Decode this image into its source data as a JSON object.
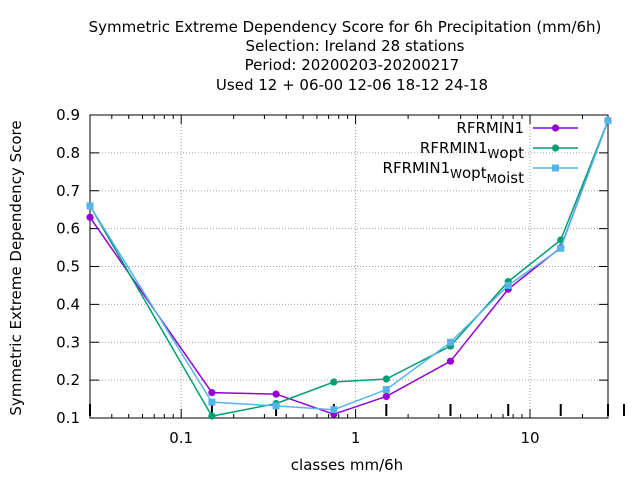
{
  "chart_data": {
    "type": "line",
    "title": [
      "Symmetric Extreme Dependency Score  for 6h Precipitation (mm/6h)",
      "Selection: Ireland      28 stations",
      "Period: 20200203-20200217",
      "Used  12 + 06-00 12-06 18-12 24-18"
    ],
    "xlabel": "classes mm/6h",
    "ylabel": "Symmetric Extreme Dependency Score",
    "xscale": "log",
    "xlim": [
      0.03,
      28
    ],
    "ylim": [
      0.1,
      0.9
    ],
    "yticks": [
      "0.1",
      "0.2",
      "0.3",
      "0.4",
      "0.5",
      "0.6",
      "0.7",
      "0.8",
      "0.9"
    ],
    "xticks": [
      "0.1",
      "1",
      "10"
    ],
    "grid": true,
    "legend_position": "top-right",
    "series": [
      {
        "name": "RFRMIN1",
        "legend_parts": [
          {
            "text": "RFRMIN1"
          }
        ],
        "color": "#9400d3",
        "marker": "circle",
        "x": [
          0.03,
          0.15,
          0.35,
          0.75,
          1.5,
          3.5,
          7.5,
          15,
          28
        ],
        "y": [
          0.63,
          0.167,
          0.163,
          0.11,
          0.157,
          0.25,
          0.44,
          0.55,
          0.885
        ]
      },
      {
        "name": "RFRMIN1 W opt",
        "legend_parts": [
          {
            "text": "RFRMIN1"
          },
          {
            "text": "W",
            "sub": true
          },
          {
            "text": "opt"
          }
        ],
        "color": "#009e73",
        "marker": "circle",
        "x": [
          0.03,
          0.15,
          0.35,
          0.75,
          1.5,
          3.5,
          7.5,
          15,
          28
        ],
        "y": [
          0.66,
          0.105,
          0.138,
          0.195,
          0.203,
          0.29,
          0.46,
          0.57,
          0.885
        ]
      },
      {
        "name": "RFRMIN1 W opt M oist",
        "legend_parts": [
          {
            "text": "RFRMIN1"
          },
          {
            "text": "W",
            "sub": true
          },
          {
            "text": "opt"
          },
          {
            "text": "M",
            "sub": true
          },
          {
            "text": "oist"
          }
        ],
        "color": "#56b4e9",
        "marker": "square",
        "x": [
          0.03,
          0.15,
          0.35,
          0.75,
          1.5,
          3.5,
          7.5,
          15,
          28
        ],
        "y": [
          0.66,
          0.142,
          0.132,
          0.122,
          0.175,
          0.3,
          0.45,
          0.548,
          0.885
        ]
      }
    ]
  }
}
